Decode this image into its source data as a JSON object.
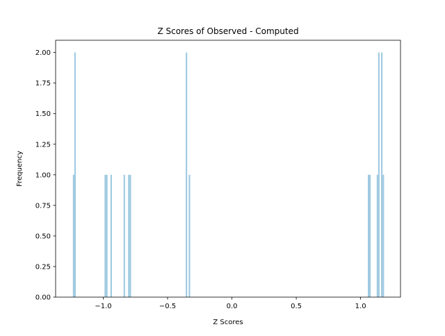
{
  "chart_data": {
    "type": "bar",
    "subtype": "histogram",
    "title": "Z Scores of Observed - Computed",
    "xlabel": "Z Scores",
    "ylabel": "Frequency",
    "xlim": [
      -1.37,
      1.31
    ],
    "ylim": [
      0,
      2.1
    ],
    "grid": false,
    "legend": "none",
    "bar_color": "#9ecae1",
    "bin_width": 0.0115,
    "xticks": [
      -1.0,
      -0.5,
      0.0,
      0.5,
      1.0
    ],
    "xtick_labels": [
      "−1.0",
      "−0.5",
      "0.0",
      "0.5",
      "1.0"
    ],
    "yticks": [
      0,
      0.25,
      0.5,
      0.75,
      1.0,
      1.25,
      1.5,
      1.75,
      2.0
    ],
    "ytick_labels": [
      "0.00",
      "0.25",
      "0.50",
      "0.75",
      "1.00",
      "1.25",
      "1.50",
      "1.75",
      "2.00"
    ],
    "bins": [
      {
        "x": -1.236,
        "value": 1
      },
      {
        "x": -1.225,
        "value": 2
      },
      {
        "x": -0.99,
        "value": 1
      },
      {
        "x": -0.978,
        "value": 1
      },
      {
        "x": -0.944,
        "value": 1
      },
      {
        "x": -0.842,
        "value": 1
      },
      {
        "x": -0.807,
        "value": 1
      },
      {
        "x": -0.795,
        "value": 1
      },
      {
        "x": -0.359,
        "value": 2
      },
      {
        "x": -0.336,
        "value": 1
      },
      {
        "x": 1.056,
        "value": 1
      },
      {
        "x": 1.067,
        "value": 1
      },
      {
        "x": 1.125,
        "value": 1
      },
      {
        "x": 1.136,
        "value": 2
      },
      {
        "x": 1.159,
        "value": 2
      },
      {
        "x": 1.171,
        "value": 1
      }
    ]
  }
}
